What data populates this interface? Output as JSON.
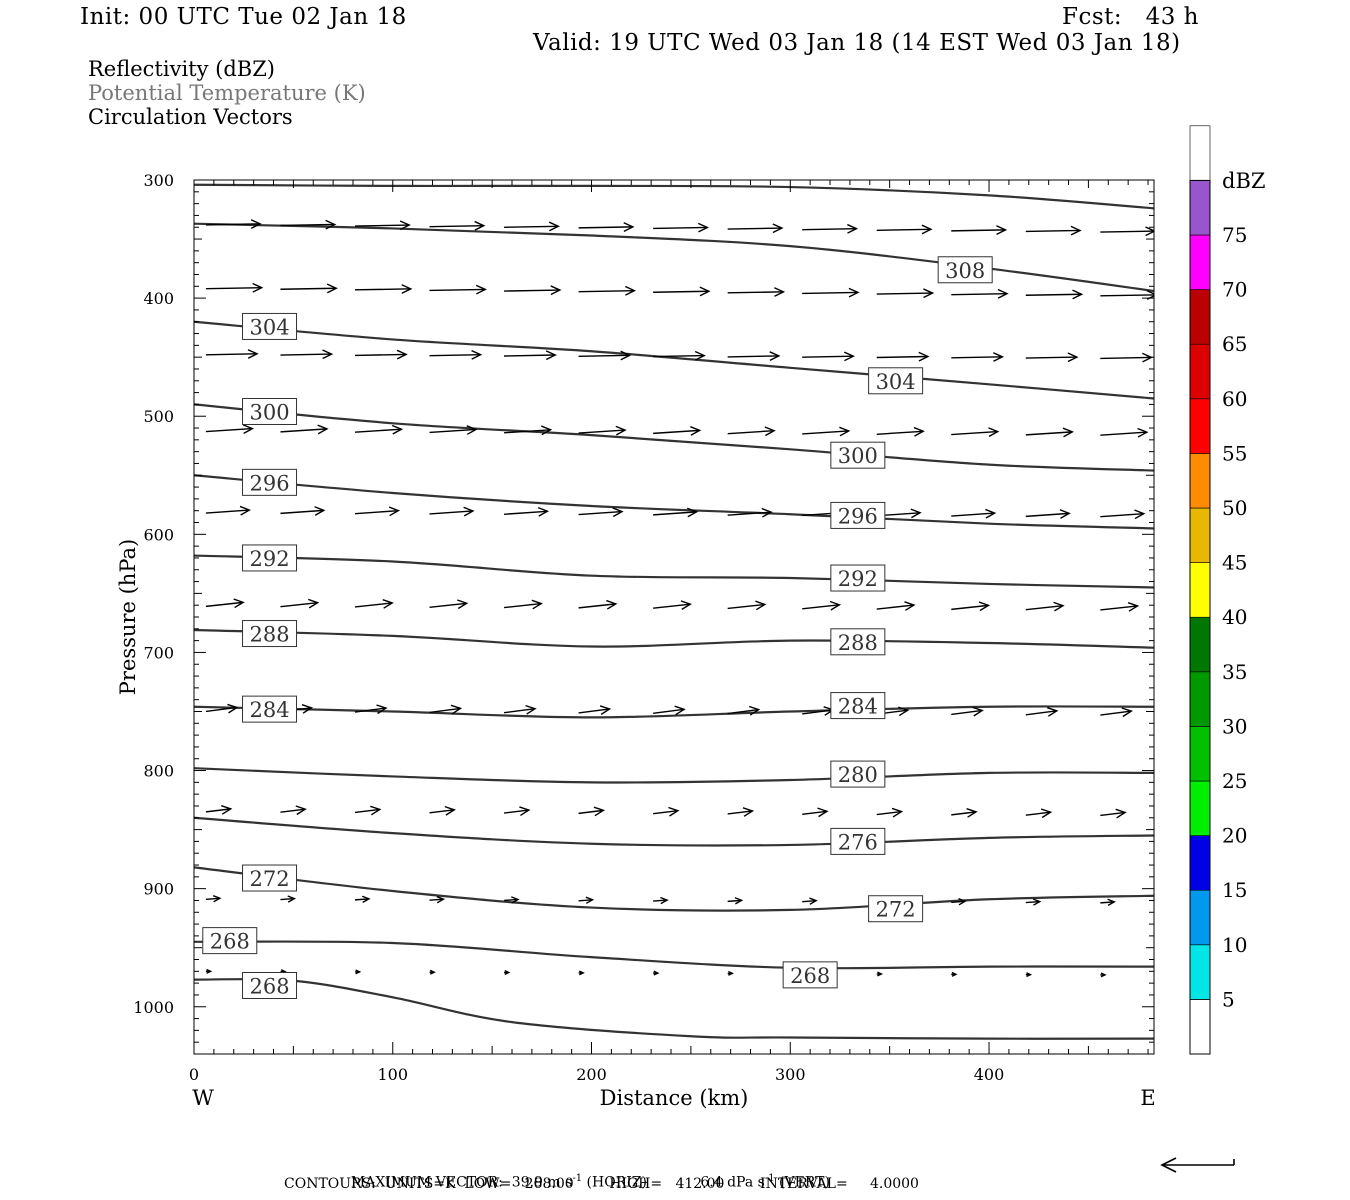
{
  "header": {
    "init": "Init: 00 UTC Tue 02 Jan 18",
    "fcst": "Fcst:   43 h",
    "valid": "Valid: 19 UTC Wed 03 Jan 18 (14 EST Wed 03 Jan 18)"
  },
  "legend_text": {
    "reflectivity": "Reflectivity (dBZ)",
    "theta": "Potential Temperature (K)",
    "circulation": "Circulation Vectors"
  },
  "colorbar": {
    "title": "dBZ",
    "levels": [
      5,
      10,
      15,
      20,
      25,
      30,
      35,
      40,
      45,
      50,
      55,
      60,
      65,
      70,
      75
    ],
    "colors": [
      "#00e6e6",
      "#0099ee",
      "#0000e6",
      "#00ee00",
      "#00c000",
      "#009900",
      "#007700",
      "#ffff00",
      "#e6b800",
      "#ff8c00",
      "#ff0000",
      "#dd0000",
      "#bb0000",
      "#ff00ff",
      "#9955cc",
      "#ffffff"
    ]
  },
  "footer": {
    "max_vector_label": "MAXIMUM VECTOR:",
    "max_horiz_value": "39.9 m s",
    "max_horiz_unit": "(HORIZ)",
    "max_vert_value": "6.4 dPa s",
    "max_vert_unit": "(VERT)",
    "exp": "-1",
    "contours": "CONTOURS:  UNITS=K  LOW=   268.00        HIGH=   412.00        INTERVAL=     4.0000"
  },
  "chart_data": {
    "type": "line",
    "xlabel": "Distance (km)",
    "ylabel": "Pressure (hPa)",
    "xlim": [
      0,
      483
    ],
    "ylim": [
      1040,
      300
    ],
    "x_ticks": [
      0,
      100,
      200,
      300,
      400
    ],
    "y_ticks": [
      300,
      400,
      500,
      600,
      700,
      800,
      900,
      1000
    ],
    "x_end_labels": {
      "left": "W",
      "right": "E"
    },
    "contours": [
      {
        "name": "308",
        "x": [
          0,
          100,
          200,
          300,
          400,
          483
        ],
        "p": [
          304,
          305,
          305,
          306,
          313,
          324
        ]
      },
      {
        "name": "308",
        "x": [
          0,
          100,
          200,
          300,
          400,
          483
        ],
        "p": [
          337,
          341,
          347,
          356,
          375,
          394
        ]
      },
      {
        "name": "304",
        "x": [
          0,
          100,
          200,
          300,
          400,
          483
        ],
        "p": [
          420,
          435,
          445,
          459,
          473,
          485
        ]
      },
      {
        "name": "300",
        "x": [
          0,
          100,
          200,
          300,
          400,
          483
        ],
        "p": [
          490,
          506,
          516,
          528,
          541,
          546
        ]
      },
      {
        "name": "296",
        "x": [
          0,
          100,
          200,
          300,
          400,
          483
        ],
        "p": [
          550,
          565,
          576,
          583,
          591,
          595
        ]
      },
      {
        "name": "292",
        "x": [
          0,
          100,
          200,
          300,
          400,
          483
        ],
        "p": [
          618,
          623,
          635,
          637,
          642,
          645
        ]
      },
      {
        "name": "288",
        "x": [
          0,
          100,
          200,
          300,
          400,
          483
        ],
        "p": [
          681,
          686,
          695,
          690,
          692,
          696
        ]
      },
      {
        "name": "284",
        "x": [
          0,
          100,
          200,
          300,
          400,
          483
        ],
        "p": [
          746,
          750,
          755,
          750,
          746,
          746
        ]
      },
      {
        "name": "280",
        "x": [
          0,
          100,
          200,
          300,
          400,
          483
        ],
        "p": [
          798,
          805,
          810,
          808,
          802,
          802
        ]
      },
      {
        "name": "276",
        "x": [
          0,
          100,
          200,
          300,
          400,
          483
        ],
        "p": [
          840,
          853,
          862,
          863,
          857,
          855
        ]
      },
      {
        "name": "272",
        "x": [
          0,
          100,
          200,
          300,
          400,
          483
        ],
        "p": [
          882,
          902,
          916,
          918,
          909,
          906
        ]
      },
      {
        "name": "268",
        "x": [
          0,
          100,
          200,
          300,
          400,
          483
        ],
        "p": [
          945,
          946,
          958,
          967,
          966,
          966
        ]
      },
      {
        "name": "268",
        "x": [
          0,
          50,
          100,
          160,
          250,
          300,
          400,
          483
        ],
        "p": [
          977,
          978,
          992,
          1013,
          1025,
          1026,
          1027,
          1027
        ]
      }
    ],
    "contour_labels": [
      {
        "text": "308",
        "x": 388,
        "p": 376
      },
      {
        "text": "304",
        "x": 38,
        "p": 424
      },
      {
        "text": "304",
        "x": 353,
        "p": 470
      },
      {
        "text": "300",
        "x": 38,
        "p": 496
      },
      {
        "text": "300",
        "x": 334,
        "p": 533
      },
      {
        "text": "296",
        "x": 38,
        "p": 556
      },
      {
        "text": "296",
        "x": 334,
        "p": 584
      },
      {
        "text": "292",
        "x": 38,
        "p": 620
      },
      {
        "text": "292",
        "x": 334,
        "p": 637
      },
      {
        "text": "288",
        "x": 38,
        "p": 684
      },
      {
        "text": "288",
        "x": 334,
        "p": 691
      },
      {
        "text": "284",
        "x": 38,
        "p": 748
      },
      {
        "text": "284",
        "x": 334,
        "p": 745
      },
      {
        "text": "280",
        "x": 334,
        "p": 803
      },
      {
        "text": "276",
        "x": 334,
        "p": 860
      },
      {
        "text": "272",
        "x": 38,
        "p": 891
      },
      {
        "text": "272",
        "x": 353,
        "p": 917
      },
      {
        "text": "268",
        "x": 18,
        "p": 944
      },
      {
        "text": "268",
        "x": 310,
        "p": 973
      },
      {
        "text": "268",
        "x": 38,
        "p": 982
      }
    ],
    "vector_rows": [
      {
        "p": 338,
        "u": 35,
        "w": -1
      },
      {
        "p": 392,
        "u": 36,
        "w": -1
      },
      {
        "p": 448,
        "u": 33,
        "w": -1
      },
      {
        "p": 513,
        "u": 30,
        "w": -3
      },
      {
        "p": 582,
        "u": 28,
        "w": -3
      },
      {
        "p": 661,
        "u": 24,
        "w": -4
      },
      {
        "p": 750,
        "u": 20,
        "w": -4
      },
      {
        "p": 835,
        "u": 16,
        "w": -3
      },
      {
        "p": 909,
        "u": 9,
        "w": -1
      },
      {
        "p": 970,
        "u": 3,
        "w": 0
      }
    ]
  }
}
